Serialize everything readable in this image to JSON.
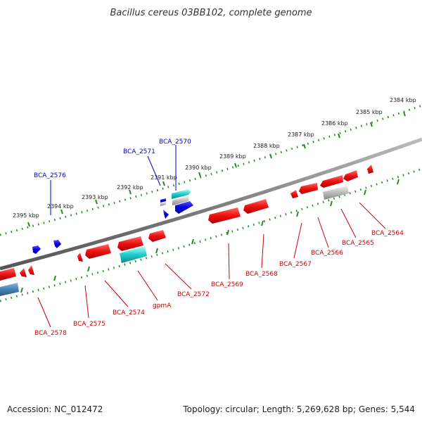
{
  "title": "Bacillus cereus 03BB102, complete genome",
  "footer": {
    "accession": "Accession: NC_012472",
    "summary": "Topology: circular; Length: 5,269,628 bp; Genes: 5,544"
  },
  "colors": {
    "forward_label": "#0000cc",
    "reverse_label": "#cc0000",
    "tick": "#228b22",
    "backbone": "#808080",
    "forward_gene": "#0000dd",
    "reverse_gene": "#ee1111",
    "rna_gene": "#22cccc",
    "pseudo_gene": "#aaaaaa",
    "steel_gene": "#4682b4"
  },
  "ticks": [
    "2384 kbp",
    "2385 kbp",
    "2386 kbp",
    "2387 kbp",
    "2388 kbp",
    "2389 kbp",
    "2390 kbp",
    "2391 kbp",
    "2392 kbp",
    "2393 kbp",
    "2394 kbp",
    "2395 kbp"
  ],
  "genes_forward": [
    {
      "label": "BCA_2570"
    },
    {
      "label": "BCA_2571"
    },
    {
      "label": "BCA_2576"
    }
  ],
  "genes_reverse": [
    {
      "label": "BCA_2564"
    },
    {
      "label": "BCA_2565"
    },
    {
      "label": "BCA_2566"
    },
    {
      "label": "BCA_2567"
    },
    {
      "label": "BCA_2568"
    },
    {
      "label": "BCA_2569"
    },
    {
      "label": "BCA_2572"
    },
    {
      "label": "gpmA"
    },
    {
      "label": "BCA_2574"
    },
    {
      "label": "BCA_2575"
    },
    {
      "label": "BCA_2578"
    }
  ]
}
